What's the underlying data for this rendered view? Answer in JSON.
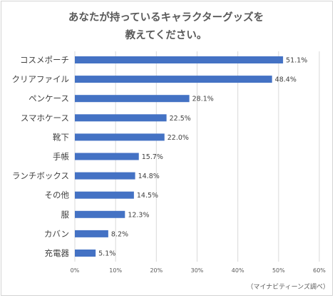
{
  "chart_data": {
    "type": "bar",
    "orientation": "horizontal",
    "title_lines": [
      "あなたが持っているキャラクターグッズを",
      "教えてください。"
    ],
    "categories": [
      "コスメポーチ",
      "クリアファイル",
      "ペンケース",
      "スマホケース",
      "靴下",
      "手帳",
      "ランチボックス",
      "その他",
      "服",
      "カバン",
      "充電器"
    ],
    "values": [
      51.1,
      48.4,
      28.1,
      22.5,
      22.0,
      15.7,
      14.8,
      14.5,
      12.3,
      8.2,
      5.1
    ],
    "value_labels": [
      "51.1%",
      "48.4%",
      "28.1%",
      "22.5%",
      "22.0%",
      "15.7%",
      "14.8%",
      "14.5%",
      "12.3%",
      "8.2%",
      "5.1%"
    ],
    "x_ticks": [
      "0%",
      "10%",
      "20%",
      "30%",
      "40%",
      "50%",
      "60%"
    ],
    "xlim": [
      0,
      60
    ],
    "grid": "vertical",
    "bar_color": "#4472c4",
    "source": "（マイナビティーンズ調べ）"
  }
}
